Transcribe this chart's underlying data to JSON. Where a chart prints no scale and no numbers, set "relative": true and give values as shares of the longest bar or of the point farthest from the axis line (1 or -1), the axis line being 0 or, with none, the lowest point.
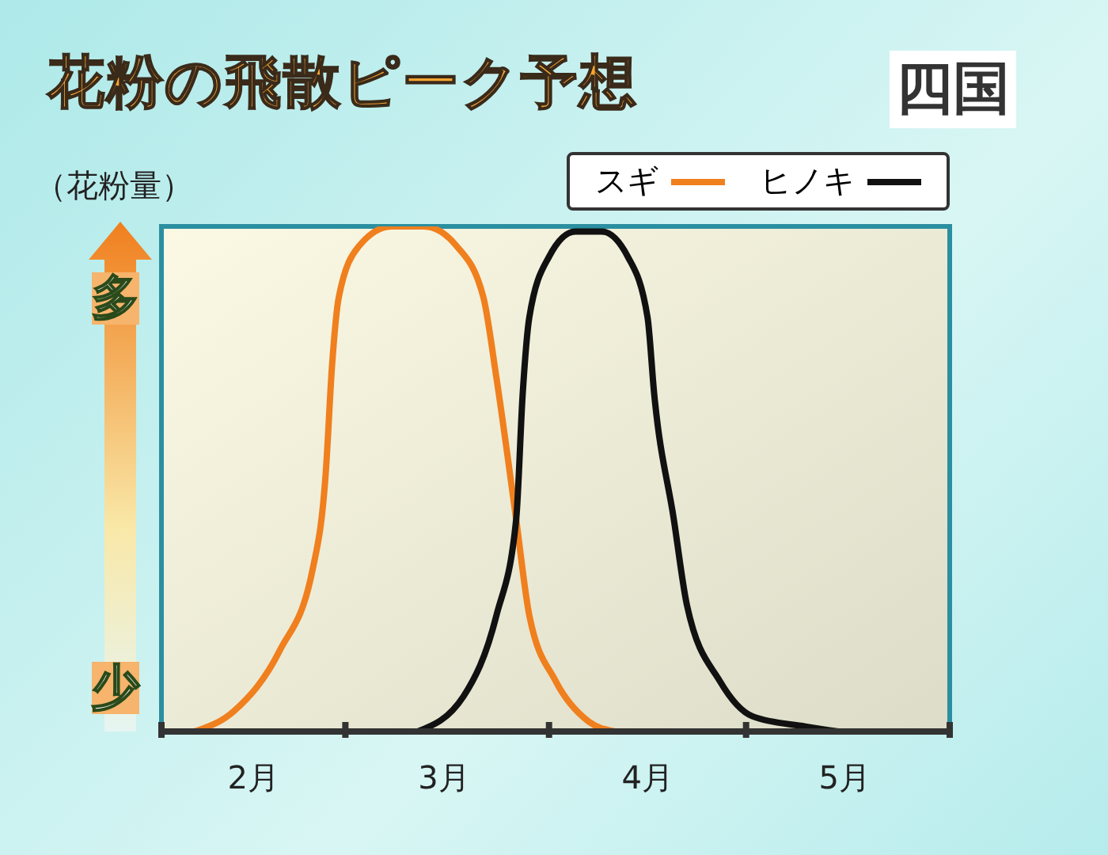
{
  "chart_data": {
    "type": "line",
    "title": "花粉の飛散ピーク予想",
    "subtitle": "四国",
    "ylabel": "（花粉量）",
    "annotations": [
      "多",
      "少"
    ],
    "relative": true,
    "xlim": [
      "--02-01",
      "--06-01"
    ],
    "xticks": [
      {
        "value": "--02-01",
        "label": null
      },
      {
        "value": "--02-15",
        "label": "2月"
      },
      {
        "value": "--03-01",
        "label": null
      },
      {
        "value": "--03-16",
        "label": "3月"
      },
      {
        "value": "--04-01",
        "label": null
      },
      {
        "value": "--04-16",
        "label": "4月"
      },
      {
        "value": "--05-01",
        "label": null
      },
      {
        "value": "--05-16",
        "label": "5月"
      },
      {
        "value": "--06-01",
        "label": null
      }
    ],
    "tick_labels": "x",
    "legend": "top right",
    "marker": "none",
    "line_style": "solid",
    "series": [
      {
        "name": "スギ",
        "color": "#f07f1e",
        "x": [
          "--02-06",
          "--02-12",
          "--02-19",
          "--02-24",
          "--02-26",
          "--02-27",
          "--02-28",
          "--03-03",
          "--03-08",
          "--03-13",
          "--03-18",
          "--03-22",
          "--03-24",
          "--03-27",
          "--03-29",
          "--04-02",
          "--04-07",
          "--04-11"
        ],
        "values": [
          0,
          0.04,
          0.16,
          0.32,
          0.51,
          0.73,
          0.86,
          0.96,
          1,
          1,
          0.96,
          0.86,
          0.7,
          0.42,
          0.23,
          0.1,
          0.02,
          0
        ]
      },
      {
        "name": "ヒノキ",
        "color": "#111111",
        "x": [
          "--03-12",
          "--03-19",
          "--03-24",
          "--03-27",
          "--03-28",
          "--03-29",
          "--04-01",
          "--04-05",
          "--04-09",
          "--04-13",
          "--04-16",
          "--04-17",
          "--04-20",
          "--04-22",
          "--04-27",
          "--05-02",
          "--05-10",
          "--05-15"
        ],
        "values": [
          0,
          0.07,
          0.23,
          0.42,
          0.67,
          0.82,
          0.94,
          0.99,
          0.99,
          0.94,
          0.82,
          0.67,
          0.42,
          0.25,
          0.1,
          0.03,
          0.01,
          0
        ]
      }
    ]
  }
}
